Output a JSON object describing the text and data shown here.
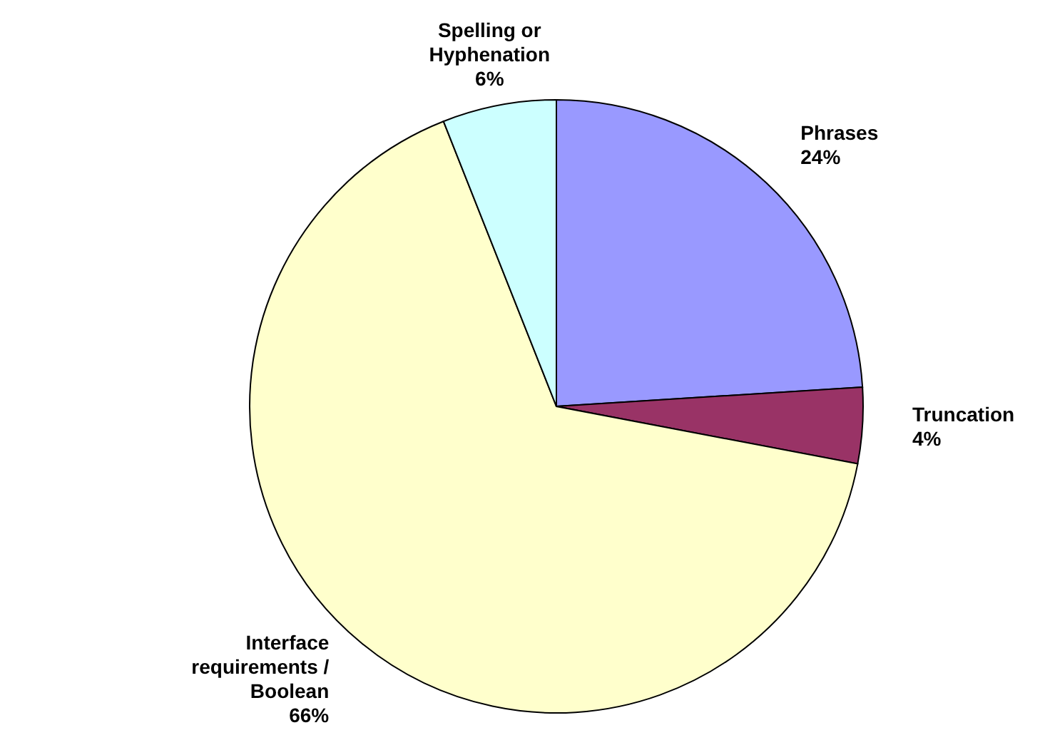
{
  "chart_data": {
    "type": "pie",
    "categories": [
      "Phrases",
      "Truncation",
      "Interface requirements / Boolean",
      "Spelling or Hyphenation"
    ],
    "values": [
      24,
      4,
      66,
      6
    ],
    "value_labels": [
      "24%",
      "4%",
      "66%",
      "6%"
    ],
    "colors": [
      "#9999ff",
      "#993366",
      "#ffffcc",
      "#ccffff"
    ],
    "legend": false
  }
}
